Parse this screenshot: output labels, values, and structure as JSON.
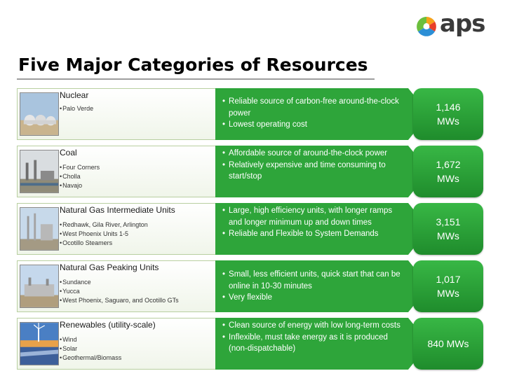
{
  "brand": {
    "name": "aps"
  },
  "page": {
    "title": "Five Major Categories of Resources"
  },
  "rows": [
    {
      "category": "Nuclear",
      "sites": [
        "Palo Verde"
      ],
      "bullets": [
        "Reliable source of carbon-free around-the-clock power",
        "Lowest operating cost"
      ],
      "capacity": "1,146 MWs"
    },
    {
      "category": "Coal",
      "sites": [
        "Four Corners",
        "Cholla",
        "Navajo"
      ],
      "bullets": [
        "Affordable source of around-the-clock power",
        "Relatively expensive and time consuming to start/stop"
      ],
      "capacity": "1,672 MWs"
    },
    {
      "category": "Natural Gas Intermediate Units",
      "sites": [
        "Redhawk, Gila River, Arlington",
        "West Phoenix Units 1-5",
        "Ocotillo Steamers"
      ],
      "bullets": [
        "Large, high efficiency units, with longer ramps and longer minimum up and down times",
        "Reliable and Flexible to System Demands"
      ],
      "capacity": "3,151 MWs"
    },
    {
      "category": "Natural Gas Peaking Units",
      "sites": [
        "Sundance",
        "Yucca",
        "West Phoenix, Saguaro, and Ocotillo GTs"
      ],
      "bullets": [
        "Small, less efficient units, quick start that can be online in 10-30 minutes",
        "Very flexible"
      ],
      "capacity": "1,017 MWs"
    },
    {
      "category": "Renewables (utility-scale)",
      "sites": [
        "Wind",
        "Solar",
        "Geothermal/Biomass"
      ],
      "bullets": [
        "Clean source of energy with low long-term costs",
        "Inflexible, must take energy as it is produced (non-dispatchable)"
      ],
      "capacity": "840 MWs"
    }
  ]
}
